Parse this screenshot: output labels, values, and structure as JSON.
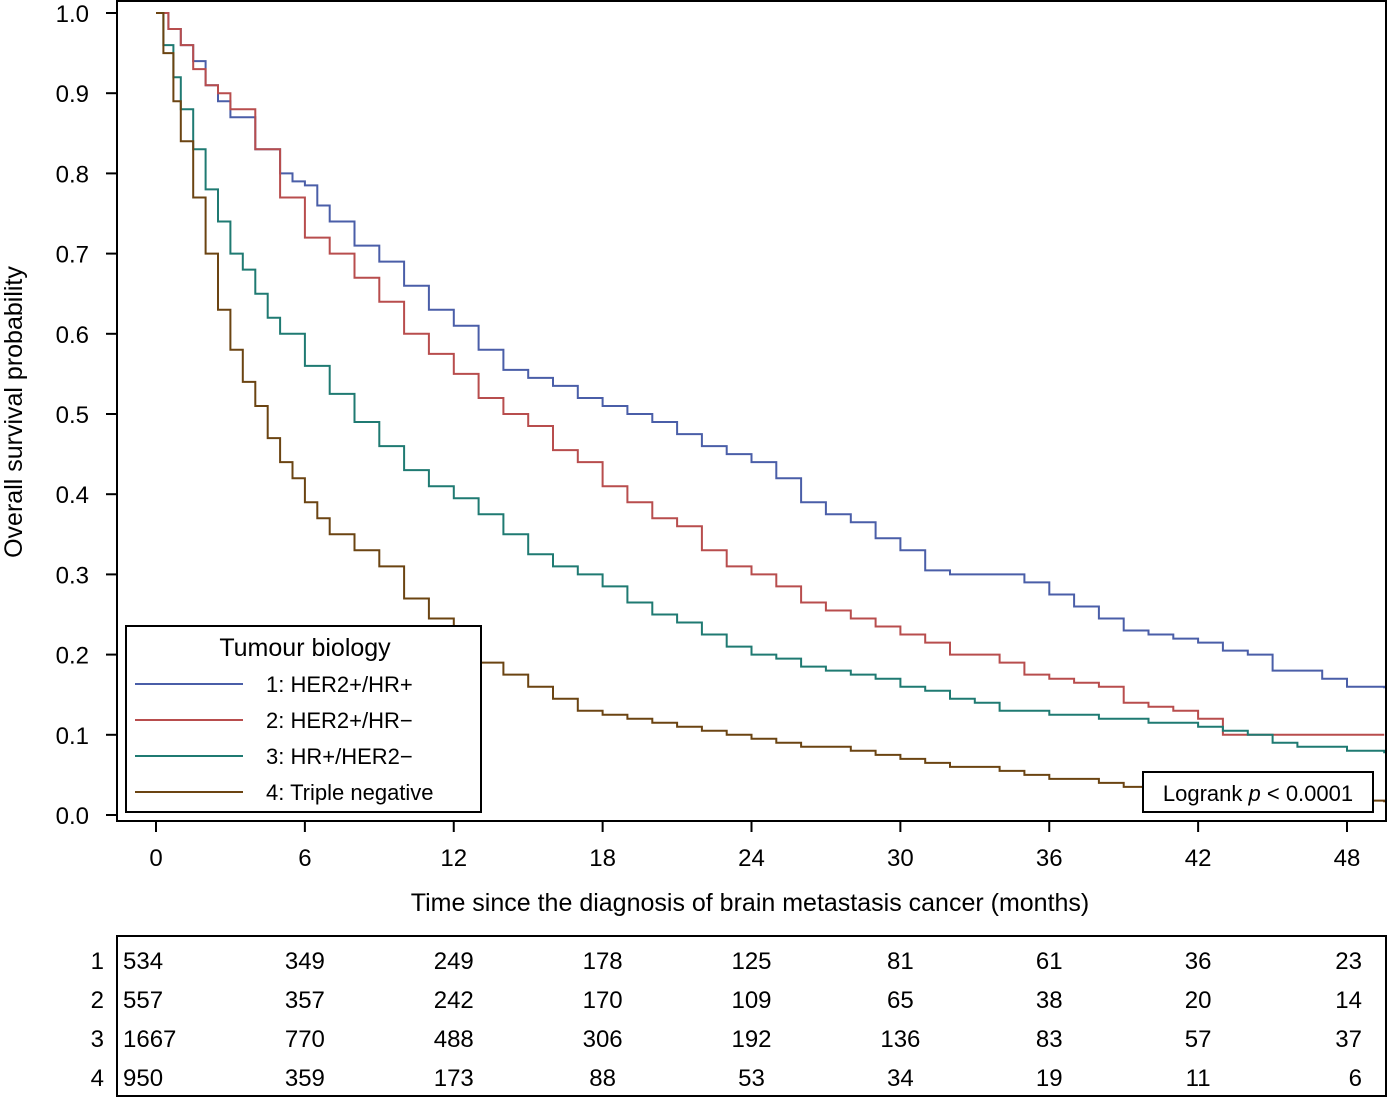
{
  "chart_data": {
    "type": "line",
    "subtype": "kaplan-meier step",
    "xlabel": "Time since the diagnosis of brain metastasis cancer (months)",
    "ylabel": "Overall survival probability",
    "xlim": [
      -3,
      49.5
    ],
    "ylim": [
      -0.01,
      1.0
    ],
    "x_ticks": [
      0,
      6,
      12,
      18,
      24,
      30,
      36,
      42,
      48
    ],
    "y_ticks": [
      "0.0",
      "0.1",
      "0.2",
      "0.3",
      "0.4",
      "0.5",
      "0.6",
      "0.7",
      "0.8",
      "0.9",
      "1.0"
    ],
    "legend": {
      "title": "Tumour biology",
      "placement": "lower-left",
      "entries": [
        "1: HER2+/HR+",
        "2: HER2+/HR−",
        "3: HR+/HER2−",
        "4: Triple negative"
      ]
    },
    "annotation": {
      "prefix": "Logrank ",
      "italic": "p",
      "suffix": " < 0.0001"
    },
    "series": [
      {
        "name": "1: HER2+/HR+",
        "color": "#4a5ea8",
        "points": [
          [
            0,
            1.0
          ],
          [
            0.5,
            0.98
          ],
          [
            1,
            0.96
          ],
          [
            1.5,
            0.94
          ],
          [
            2,
            0.91
          ],
          [
            2.5,
            0.89
          ],
          [
            3,
            0.87
          ],
          [
            4,
            0.83
          ],
          [
            5,
            0.8
          ],
          [
            5.5,
            0.79
          ],
          [
            6,
            0.785
          ],
          [
            6.5,
            0.76
          ],
          [
            7,
            0.74
          ],
          [
            8,
            0.71
          ],
          [
            9,
            0.69
          ],
          [
            10,
            0.66
          ],
          [
            11,
            0.63
          ],
          [
            12,
            0.61
          ],
          [
            13,
            0.58
          ],
          [
            14,
            0.555
          ],
          [
            15,
            0.545
          ],
          [
            16,
            0.535
          ],
          [
            17,
            0.52
          ],
          [
            18,
            0.51
          ],
          [
            19,
            0.5
          ],
          [
            20,
            0.49
          ],
          [
            21,
            0.475
          ],
          [
            22,
            0.46
          ],
          [
            23,
            0.45
          ],
          [
            24,
            0.44
          ],
          [
            25,
            0.42
          ],
          [
            26,
            0.39
          ],
          [
            27,
            0.375
          ],
          [
            28,
            0.365
          ],
          [
            29,
            0.345
          ],
          [
            30,
            0.33
          ],
          [
            31,
            0.305
          ],
          [
            32,
            0.3
          ],
          [
            33,
            0.3
          ],
          [
            34,
            0.3
          ],
          [
            35,
            0.29
          ],
          [
            36,
            0.275
          ],
          [
            37,
            0.26
          ],
          [
            38,
            0.245
          ],
          [
            39,
            0.23
          ],
          [
            40,
            0.225
          ],
          [
            41,
            0.22
          ],
          [
            42,
            0.215
          ],
          [
            43,
            0.205
          ],
          [
            44,
            0.2
          ],
          [
            45,
            0.18
          ],
          [
            46,
            0.18
          ],
          [
            47,
            0.17
          ],
          [
            48,
            0.16
          ],
          [
            49.5,
            0.158
          ]
        ]
      },
      {
        "name": "2: HER2+/HR−",
        "color": "#b84d4d",
        "points": [
          [
            0,
            1.0
          ],
          [
            0.5,
            0.98
          ],
          [
            1,
            0.96
          ],
          [
            1.5,
            0.93
          ],
          [
            2,
            0.91
          ],
          [
            2.5,
            0.9
          ],
          [
            3,
            0.88
          ],
          [
            4,
            0.83
          ],
          [
            5,
            0.77
          ],
          [
            6,
            0.72
          ],
          [
            7,
            0.7
          ],
          [
            8,
            0.67
          ],
          [
            9,
            0.64
          ],
          [
            10,
            0.6
          ],
          [
            11,
            0.575
          ],
          [
            12,
            0.55
          ],
          [
            13,
            0.52
          ],
          [
            14,
            0.5
          ],
          [
            15,
            0.485
          ],
          [
            16,
            0.455
          ],
          [
            17,
            0.44
          ],
          [
            18,
            0.41
          ],
          [
            19,
            0.39
          ],
          [
            20,
            0.37
          ],
          [
            21,
            0.36
          ],
          [
            22,
            0.33
          ],
          [
            23,
            0.31
          ],
          [
            24,
            0.3
          ],
          [
            25,
            0.285
          ],
          [
            26,
            0.265
          ],
          [
            27,
            0.255
          ],
          [
            28,
            0.245
          ],
          [
            29,
            0.235
          ],
          [
            30,
            0.225
          ],
          [
            31,
            0.215
          ],
          [
            32,
            0.2
          ],
          [
            33,
            0.2
          ],
          [
            34,
            0.19
          ],
          [
            35,
            0.175
          ],
          [
            36,
            0.17
          ],
          [
            37,
            0.165
          ],
          [
            38,
            0.16
          ],
          [
            39,
            0.14
          ],
          [
            40,
            0.135
          ],
          [
            41,
            0.13
          ],
          [
            42,
            0.12
          ],
          [
            43,
            0.1
          ],
          [
            44,
            0.1
          ],
          [
            45,
            0.1
          ],
          [
            46,
            0.1
          ],
          [
            49.5,
            0.1
          ]
        ]
      },
      {
        "name": "3: HR+/HER2−",
        "color": "#1f7a72",
        "points": [
          [
            0,
            1.0
          ],
          [
            0.3,
            0.96
          ],
          [
            0.7,
            0.92
          ],
          [
            1,
            0.88
          ],
          [
            1.5,
            0.83
          ],
          [
            2,
            0.78
          ],
          [
            2.5,
            0.74
          ],
          [
            3,
            0.7
          ],
          [
            3.5,
            0.68
          ],
          [
            4,
            0.65
          ],
          [
            4.5,
            0.62
          ],
          [
            5,
            0.6
          ],
          [
            6,
            0.56
          ],
          [
            7,
            0.525
          ],
          [
            8,
            0.49
          ],
          [
            9,
            0.46
          ],
          [
            10,
            0.43
          ],
          [
            11,
            0.41
          ],
          [
            12,
            0.395
          ],
          [
            13,
            0.375
          ],
          [
            14,
            0.35
          ],
          [
            15,
            0.325
          ],
          [
            16,
            0.31
          ],
          [
            17,
            0.3
          ],
          [
            18,
            0.285
          ],
          [
            19,
            0.265
          ],
          [
            20,
            0.25
          ],
          [
            21,
            0.24
          ],
          [
            22,
            0.225
          ],
          [
            23,
            0.21
          ],
          [
            24,
            0.2
          ],
          [
            25,
            0.195
          ],
          [
            26,
            0.185
          ],
          [
            27,
            0.18
          ],
          [
            28,
            0.175
          ],
          [
            29,
            0.17
          ],
          [
            30,
            0.16
          ],
          [
            31,
            0.155
          ],
          [
            32,
            0.145
          ],
          [
            33,
            0.14
          ],
          [
            34,
            0.13
          ],
          [
            35,
            0.13
          ],
          [
            36,
            0.125
          ],
          [
            37,
            0.125
          ],
          [
            38,
            0.12
          ],
          [
            39,
            0.12
          ],
          [
            40,
            0.115
          ],
          [
            41,
            0.115
          ],
          [
            42,
            0.11
          ],
          [
            43,
            0.105
          ],
          [
            44,
            0.1
          ],
          [
            45,
            0.09
          ],
          [
            46,
            0.085
          ],
          [
            47,
            0.085
          ],
          [
            48,
            0.08
          ],
          [
            49.5,
            0.077
          ]
        ]
      },
      {
        "name": "4: Triple negative",
        "color": "#6b4412",
        "points": [
          [
            0,
            1.0
          ],
          [
            0.3,
            0.95
          ],
          [
            0.7,
            0.89
          ],
          [
            1,
            0.84
          ],
          [
            1.5,
            0.77
          ],
          [
            2,
            0.7
          ],
          [
            2.5,
            0.63
          ],
          [
            3,
            0.58
          ],
          [
            3.5,
            0.54
          ],
          [
            4,
            0.51
          ],
          [
            4.5,
            0.47
          ],
          [
            5,
            0.44
          ],
          [
            5.5,
            0.42
          ],
          [
            6,
            0.39
          ],
          [
            6.5,
            0.37
          ],
          [
            7,
            0.35
          ],
          [
            8,
            0.33
          ],
          [
            9,
            0.31
          ],
          [
            10,
            0.27
          ],
          [
            11,
            0.245
          ],
          [
            12,
            0.215
          ],
          [
            13,
            0.19
          ],
          [
            14,
            0.175
          ],
          [
            15,
            0.16
          ],
          [
            16,
            0.145
          ],
          [
            17,
            0.13
          ],
          [
            18,
            0.125
          ],
          [
            19,
            0.12
          ],
          [
            20,
            0.115
          ],
          [
            21,
            0.11
          ],
          [
            22,
            0.105
          ],
          [
            23,
            0.1
          ],
          [
            24,
            0.095
          ],
          [
            25,
            0.09
          ],
          [
            26,
            0.085
          ],
          [
            27,
            0.085
          ],
          [
            28,
            0.08
          ],
          [
            29,
            0.075
          ],
          [
            30,
            0.07
          ],
          [
            31,
            0.065
          ],
          [
            32,
            0.06
          ],
          [
            33,
            0.06
          ],
          [
            34,
            0.055
          ],
          [
            35,
            0.05
          ],
          [
            36,
            0.045
          ],
          [
            37,
            0.045
          ],
          [
            38,
            0.04
          ],
          [
            39,
            0.035
          ],
          [
            40,
            0.03
          ],
          [
            41,
            0.03
          ],
          [
            42,
            0.025
          ],
          [
            43,
            0.025
          ],
          [
            44,
            0.02
          ],
          [
            45,
            0.02
          ],
          [
            46,
            0.02
          ],
          [
            47,
            0.018
          ],
          [
            48,
            0.018
          ],
          [
            49.5,
            0.016
          ]
        ]
      }
    ],
    "risk_table": {
      "times": [
        0,
        6,
        12,
        18,
        24,
        30,
        36,
        42,
        48
      ],
      "rows": [
        {
          "label": "1",
          "values": [
            534,
            349,
            249,
            178,
            125,
            81,
            61,
            36,
            23
          ]
        },
        {
          "label": "2",
          "values": [
            557,
            357,
            242,
            170,
            109,
            65,
            38,
            20,
            14
          ]
        },
        {
          "label": "3",
          "values": [
            1667,
            770,
            488,
            306,
            192,
            136,
            83,
            57,
            37
          ]
        },
        {
          "label": "4",
          "values": [
            950,
            359,
            173,
            88,
            53,
            34,
            19,
            11,
            6
          ]
        }
      ]
    }
  }
}
